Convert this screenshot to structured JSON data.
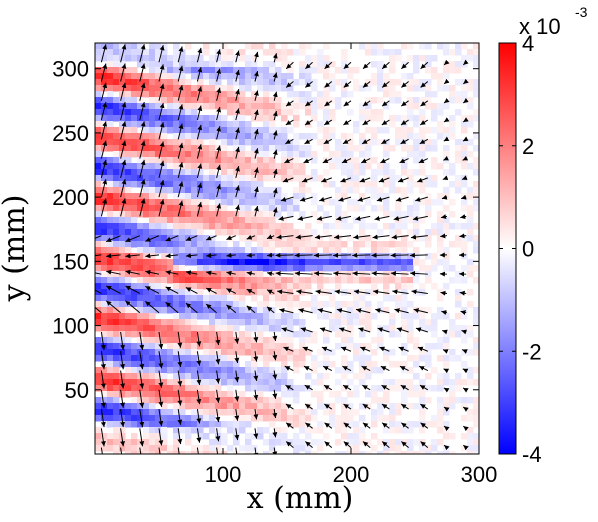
{
  "chart_data": {
    "type": "heatmap",
    "title": "",
    "xlabel": "x (mm)",
    "ylabel": "y (mm)",
    "xlim": [
      0,
      300
    ],
    "ylim": [
      0,
      320
    ],
    "x_ticks": [
      100,
      200,
      300
    ],
    "x_tick_labels": [
      "100",
      "200",
      "300"
    ],
    "y_ticks": [
      50,
      100,
      150,
      200,
      250,
      300
    ],
    "y_tick_labels": [
      "50",
      "100",
      "150",
      "200",
      "250",
      "300"
    ],
    "grid": false,
    "colormap": "blue-white-red",
    "colors": {
      "negative": "#0000ff",
      "zero": "#ffffff",
      "positive": "#ff0000"
    },
    "colorbar": {
      "min": -4,
      "max": 4,
      "ticks": [
        -4,
        -2,
        0,
        2,
        4
      ],
      "tick_labels": [
        "-4",
        "-2",
        "0",
        "2",
        "4"
      ],
      "multiplier_label": "x 10",
      "multiplier_exponent": "-3"
    },
    "field_features": [
      {
        "description": "red-blue banded vortical pattern",
        "x_range": [
          0,
          160
        ],
        "y_range": [
          20,
          300
        ]
      },
      {
        "description": "horizontal jet band",
        "x_range": [
          100,
          250
        ],
        "y_range": [
          140,
          160
        ]
      }
    ],
    "quiver": {
      "description": "arrow field: arrows near x=250-300 point leftward converging toward jet near y=150; arrows on left point up-right in upper half and down in lower half",
      "x_spacing": 15,
      "y_spacing": 15
    }
  }
}
